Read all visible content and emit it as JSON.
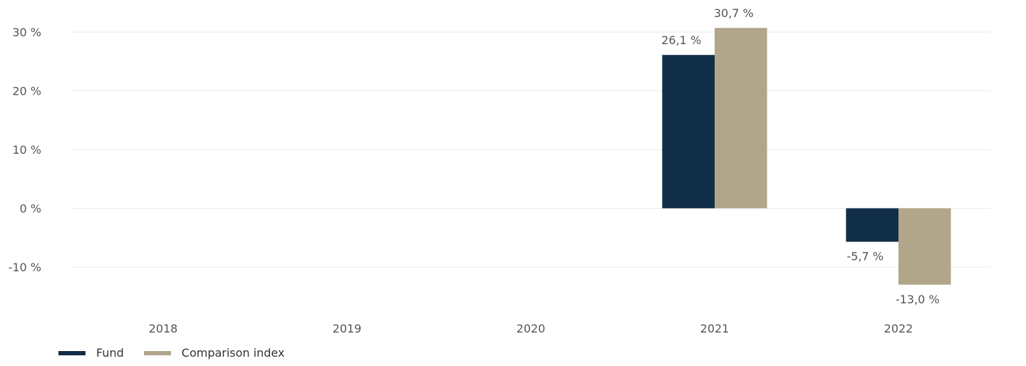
{
  "chart_data": {
    "type": "bar",
    "categories": [
      "2018",
      "2019",
      "2020",
      "2021",
      "2022"
    ],
    "series": [
      {
        "name": "Fund",
        "color": "#112e48",
        "values": [
          null,
          null,
          null,
          26.1,
          -5.7
        ],
        "labels": [
          "",
          "",
          "",
          "26,1 %",
          "-5,7 %"
        ]
      },
      {
        "name": "Comparison index",
        "color": "#b1a68a",
        "values": [
          null,
          null,
          null,
          30.7,
          -13.0
        ],
        "labels": [
          "",
          "",
          "",
          "30,7 %",
          "-13,0 %"
        ]
      }
    ],
    "yticks": [
      30,
      20,
      10,
      0,
      -10
    ],
    "ytick_labels": [
      "30 %",
      "20 %",
      "10 %",
      "0 %",
      "-10 %"
    ],
    "ylim": [
      -15,
      32
    ],
    "grid": true,
    "legend_position": "bottom-left",
    "title": "",
    "xlabel": "",
    "ylabel": ""
  }
}
